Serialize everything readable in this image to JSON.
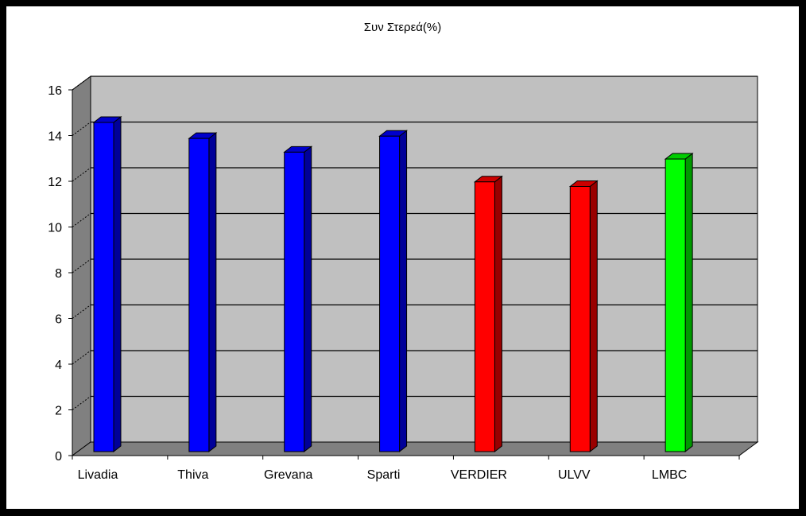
{
  "chart_data": {
    "type": "bar",
    "title": "Συν Στερεά(%)",
    "categories": [
      "Livadia",
      "Thiva",
      "Grevana",
      "Sparti",
      "VERDIER",
      "ULVV",
      "LMBC"
    ],
    "series": [
      {
        "values": [
          14.4,
          13.7,
          13.1,
          13.8,
          11.8,
          11.6,
          12.8
        ]
      }
    ],
    "bar_colors": [
      "#0000ff",
      "#0000ff",
      "#0000ff",
      "#0000ff",
      "#ff0000",
      "#ff0000",
      "#00ff00"
    ],
    "ylim": [
      0,
      16
    ],
    "yticks": [
      0,
      2,
      4,
      6,
      8,
      10,
      12,
      14,
      16
    ],
    "grid": true,
    "legend": "none",
    "style": "3d-column"
  }
}
